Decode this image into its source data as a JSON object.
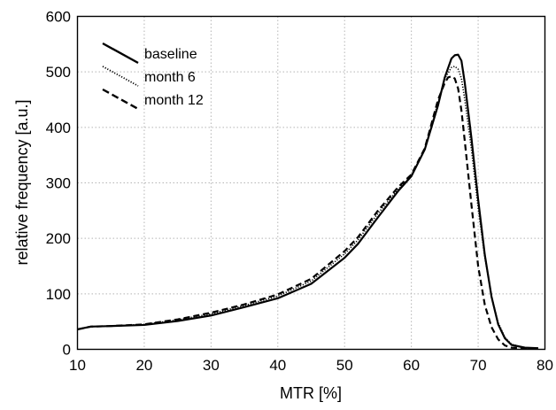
{
  "chart_data": {
    "type": "line",
    "title": "",
    "xlabel": "MTR [%]",
    "ylabel": "relative frequency [a.u.]",
    "xlim": [
      10,
      80
    ],
    "ylim": [
      0,
      600
    ],
    "xticks": [
      10,
      20,
      30,
      40,
      50,
      60,
      70,
      80
    ],
    "yticks": [
      0,
      100,
      200,
      300,
      400,
      500,
      600
    ],
    "grid": true,
    "legend_position": "top-left",
    "series": [
      {
        "name": "baseline",
        "style": "solid",
        "color": "#000000",
        "x": [
          10,
          12,
          15,
          20,
          25,
          30,
          35,
          40,
          45,
          50,
          52,
          55,
          58,
          60,
          62,
          64,
          65,
          66,
          66.5,
          67,
          67.5,
          68,
          69,
          70,
          71,
          72,
          73,
          74,
          75,
          77,
          79
        ],
        "y": [
          36,
          41,
          42,
          44,
          51,
          61,
          76,
          92,
          118,
          165,
          190,
          238,
          285,
          312,
          360,
          440,
          490,
          524,
          530,
          531,
          520,
          480,
          380,
          270,
          170,
          95,
          45,
          20,
          8,
          3,
          2
        ]
      },
      {
        "name": "month 6",
        "style": "dotted",
        "color": "#000000",
        "x": [
          10,
          12,
          15,
          20,
          25,
          30,
          35,
          40,
          45,
          50,
          52,
          55,
          58,
          60,
          62,
          64,
          65,
          66,
          66.5,
          67,
          67.5,
          68,
          69,
          70,
          71,
          72,
          73,
          74,
          75,
          77,
          79
        ],
        "y": [
          36,
          41,
          42,
          45,
          53,
          64,
          79,
          96,
          123,
          172,
          197,
          245,
          288,
          313,
          360,
          445,
          488,
          508,
          510,
          505,
          488,
          450,
          360,
          255,
          165,
          95,
          48,
          22,
          9,
          3,
          2
        ]
      },
      {
        "name": "month 12",
        "style": "dashed",
        "color": "#000000",
        "x": [
          10,
          12,
          15,
          20,
          25,
          30,
          35,
          40,
          45,
          50,
          52,
          55,
          58,
          60,
          62,
          64,
          65,
          65.5,
          66,
          66.5,
          67,
          67.5,
          68,
          69,
          70,
          71,
          72,
          73,
          74,
          75,
          77,
          79
        ],
        "y": [
          36,
          41,
          42,
          45,
          54,
          66,
          81,
          99,
          127,
          177,
          202,
          250,
          292,
          315,
          362,
          450,
          480,
          490,
          492,
          488,
          470,
          430,
          375,
          260,
          150,
          80,
          40,
          18,
          7,
          3,
          2,
          1
        ]
      }
    ]
  }
}
